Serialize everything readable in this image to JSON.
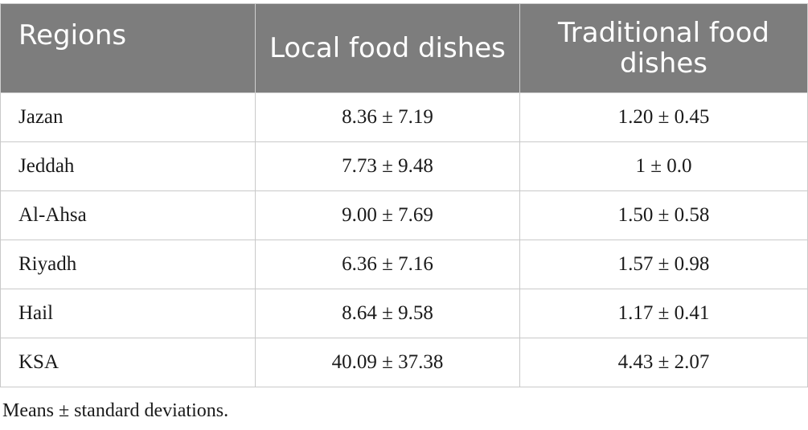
{
  "table": {
    "headers": {
      "regions": "Regions",
      "local": "Local food dishes",
      "traditional": "Traditional food dishes"
    },
    "rows": [
      {
        "region": "Jazan",
        "local": "8.36 ± 7.19",
        "traditional": "1.20 ± 0.45"
      },
      {
        "region": "Jeddah",
        "local": "7.73 ± 9.48",
        "traditional": "1 ± 0.0"
      },
      {
        "region": "Al-Ahsa",
        "local": "9.00 ± 7.69",
        "traditional": "1.50 ± 0.58"
      },
      {
        "region": "Riyadh",
        "local": "6.36 ± 7.16",
        "traditional": "1.57 ± 0.98"
      },
      {
        "region": "Hail",
        "local": "8.64 ± 9.58",
        "traditional": "1.17 ± 0.41"
      },
      {
        "region": "KSA",
        "local": "40.09 ± 37.38",
        "traditional": "4.43 ± 2.07"
      }
    ],
    "header_bg_color": "#7d7d7d"
  },
  "footnote": "Means ± standard deviations."
}
